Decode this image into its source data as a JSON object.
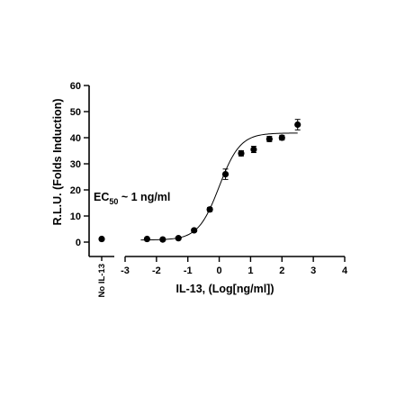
{
  "chart_data": {
    "type": "scatter",
    "title": "",
    "xlabel": "IL-13, (Log[ng/ml])",
    "ylabel": "R.L.U. (Folds Induction)",
    "xlim": [
      -3,
      4
    ],
    "ylim": [
      0,
      60
    ],
    "xticks": [
      -3,
      -2,
      -1,
      0,
      1,
      2,
      3,
      4
    ],
    "yticks": [
      0,
      10,
      20,
      30,
      40,
      50,
      60
    ],
    "x_tick_labels": [
      "-3",
      "-2",
      "-1",
      "0",
      "1",
      "2",
      "3",
      "4"
    ],
    "y_tick_labels": [
      "0",
      "10",
      "20",
      "30",
      "40",
      "50",
      "60"
    ],
    "control": {
      "label": "No IL-13",
      "value": 1.2
    },
    "annotation": {
      "prefix": "EC",
      "subscript": "50",
      "suffix": " ~ 1 ng/ml"
    },
    "series": [
      {
        "x": [
          -2.3,
          -1.8,
          -1.3,
          -0.8,
          -0.3,
          0.2,
          0.7,
          1.1,
          1.6,
          2.0,
          2.5
        ],
        "y": [
          1.2,
          1.0,
          1.5,
          4.5,
          12.5,
          26.0,
          34.0,
          35.5,
          39.5,
          40.0,
          45.0
        ],
        "error": [
          0.3,
          0.3,
          0.4,
          0.5,
          0.8,
          2.0,
          1.0,
          1.2,
          1.0,
          0.9,
          2.0
        ]
      }
    ],
    "fit": {
      "bottom": 0.8,
      "top": 41.8,
      "log_ec50": 0.0,
      "hill": 1.3
    }
  }
}
